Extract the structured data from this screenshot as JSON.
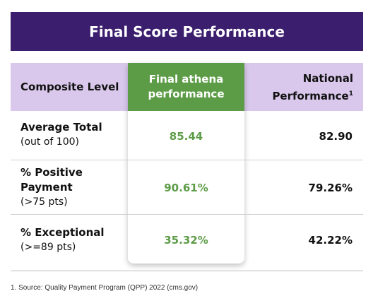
{
  "title": "Final Score Performance",
  "header": {
    "composite": "Composite Level",
    "athena_line1": "Final athena",
    "athena_line2": "performance",
    "national_line1": "National",
    "national_line2": "Performance",
    "national_sup": "1"
  },
  "rows": [
    {
      "label": "Average Total",
      "label_line2": "",
      "sub": "(out of 100)",
      "athena": "85.44",
      "national": "82.90"
    },
    {
      "label": "% Positive",
      "label_line2": "Payment",
      "sub": "(>75 pts)",
      "athena": "90.61%",
      "national": "79.26%"
    },
    {
      "label": "% Exceptional",
      "label_line2": "",
      "sub": "(>=89 pts)",
      "athena": "35.32%",
      "national": "42.22%"
    }
  ],
  "footnote": "1. Source: Quality Payment Program (QPP) 2022 (cms.gov)",
  "colors": {
    "title_bg": "#3b1e6e",
    "header_bg": "#d9c8ec",
    "athena_green": "#5d9c47"
  }
}
